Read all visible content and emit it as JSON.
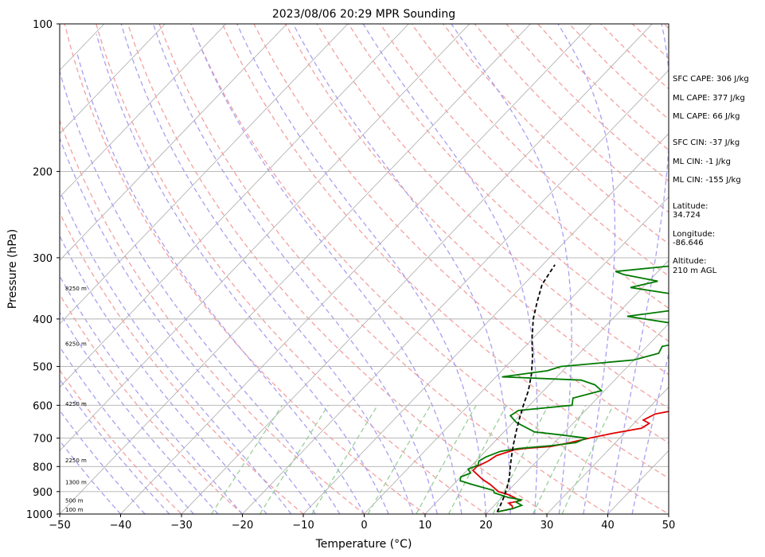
{
  "chart_data": {
    "type": "line",
    "title": "2023/08/06 20:29 MPR Sounding",
    "xlabel": "Temperature (°C)",
    "ylabel": "Pressure (hPa)",
    "xlim": [
      -50,
      50
    ],
    "ylim": [
      1000,
      100
    ],
    "y_scale": "log",
    "x_ticks": [
      "−50",
      "−40",
      "−30",
      "−20",
      "−10",
      "0",
      "10",
      "20",
      "30",
      "40",
      "50"
    ],
    "x_tick_values": [
      -50,
      -40,
      -30,
      -20,
      -10,
      0,
      10,
      20,
      30,
      40,
      50
    ],
    "y_ticks": [
      "100",
      "200",
      "300",
      "400",
      "500",
      "600",
      "700",
      "800",
      "900",
      "1000"
    ],
    "y_tick_values": [
      100,
      200,
      300,
      400,
      500,
      600,
      700,
      800,
      900,
      1000
    ],
    "grid": "horizontal at y ticks",
    "colors": {
      "temperature": "#e00000",
      "dewpoint": "#007a00",
      "parcel": "#000000",
      "isotherm": "#aaaaaa",
      "dry_adiabat": "#f4a0a0",
      "moist_adiabat": "#a9a0f0",
      "mixing_ratio": "#98d098"
    },
    "height_labels": [
      {
        "label": "100 m",
        "p": 982
      },
      {
        "label": "500 m",
        "p": 940
      },
      {
        "label": "1300 m",
        "p": 862
      },
      {
        "label": "2250 m",
        "p": 778
      },
      {
        "label": "4250 m",
        "p": 597
      },
      {
        "label": "6250 m",
        "p": 450
      },
      {
        "label": "8250 m",
        "p": 347
      }
    ],
    "series": [
      {
        "role": "temperature",
        "points": [
          [
            21.5,
            990
          ],
          [
            23.5,
            975
          ],
          [
            23.0,
            962
          ],
          [
            22.0,
            950
          ],
          [
            23.5,
            940
          ],
          [
            22.0,
            925
          ],
          [
            20.5,
            912
          ],
          [
            18.5,
            900
          ],
          [
            16.0,
            870
          ],
          [
            14.0,
            850
          ],
          [
            11.0,
            815
          ],
          [
            11.0,
            800
          ],
          [
            12.0,
            780
          ],
          [
            12.5,
            760
          ],
          [
            14.5,
            740
          ],
          [
            16.0,
            735
          ],
          [
            20.0,
            728
          ],
          [
            22.0,
            718
          ],
          [
            25.0,
            700
          ],
          [
            28.0,
            685
          ],
          [
            32.0,
            668
          ],
          [
            32.5,
            653
          ],
          [
            31.0,
            643
          ],
          [
            32.0,
            625
          ],
          [
            34.5,
            615
          ],
          [
            38.0,
            605
          ],
          [
            37.5,
            592
          ],
          [
            36.5,
            583
          ],
          [
            37.5,
            570
          ],
          [
            40.0,
            555
          ],
          [
            36.0,
            530
          ],
          [
            38.0,
            520
          ],
          [
            38.0,
            505
          ],
          [
            38.5,
            480
          ],
          [
            38.5,
            465
          ],
          [
            37.0,
            448
          ],
          [
            36.0,
            440
          ],
          [
            33.0,
            420
          ],
          [
            32.0,
            410
          ],
          [
            32.0,
            395
          ],
          [
            31.0,
            385
          ],
          [
            35.0,
            375
          ],
          [
            35.5,
            365
          ],
          [
            37.0,
            355
          ],
          [
            40.0,
            340
          ],
          [
            37.5,
            330
          ],
          [
            39.0,
            320
          ],
          [
            40.5,
            310
          ]
        ]
      },
      {
        "role": "dewpoint",
        "points": [
          [
            21.5,
            990
          ],
          [
            23.5,
            975
          ],
          [
            24.5,
            960
          ],
          [
            23.0,
            945
          ],
          [
            23.5,
            935
          ],
          [
            21.0,
            925
          ],
          [
            18.0,
            905
          ],
          [
            17.5,
            895
          ],
          [
            13.0,
            870
          ],
          [
            10.5,
            855
          ],
          [
            10.0,
            840
          ],
          [
            11.0,
            825
          ],
          [
            10.0,
            810
          ],
          [
            11.0,
            795
          ],
          [
            10.5,
            780
          ],
          [
            11.0,
            765
          ],
          [
            12.5,
            745
          ],
          [
            15.0,
            735
          ],
          [
            20.0,
            725
          ],
          [
            23.5,
            715
          ],
          [
            24.5,
            700
          ],
          [
            20.0,
            690
          ],
          [
            15.0,
            680
          ],
          [
            10.5,
            650
          ],
          [
            8.5,
            630
          ],
          [
            9.0,
            615
          ],
          [
            17.0,
            600
          ],
          [
            16.0,
            580
          ],
          [
            19.5,
            560
          ],
          [
            17.5,
            545
          ],
          [
            14.5,
            533
          ],
          [
            1.0,
            525
          ],
          [
            7.5,
            510
          ],
          [
            9.0,
            500
          ],
          [
            20.0,
            485
          ],
          [
            23.0,
            470
          ],
          [
            22.5,
            455
          ],
          [
            27.5,
            440
          ],
          [
            23.0,
            420
          ],
          [
            23.0,
            412
          ],
          [
            12.0,
            395
          ],
          [
            21.0,
            380
          ],
          [
            21.5,
            368
          ],
          [
            19.0,
            360
          ],
          [
            8.0,
            345
          ],
          [
            11.5,
            335
          ],
          [
            5.0,
            325
          ],
          [
            3.0,
            320
          ],
          [
            13.0,
            310
          ]
        ]
      },
      {
        "role": "parcel",
        "points": [
          [
            21.5,
            990
          ],
          [
            21.0,
            960
          ],
          [
            20.2,
            920
          ],
          [
            19.2,
            880
          ],
          [
            18.0,
            840
          ],
          [
            16.5,
            800
          ],
          [
            15.0,
            760
          ],
          [
            13.5,
            720
          ],
          [
            12.0,
            680
          ],
          [
            10.5,
            640
          ],
          [
            9.0,
            600
          ],
          [
            7.5,
            560
          ],
          [
            5.5,
            520
          ],
          [
            3.0,
            480
          ],
          [
            0.0,
            440
          ],
          [
            -3.0,
            400
          ],
          [
            -5.0,
            370
          ],
          [
            -7.0,
            340
          ],
          [
            -8.0,
            310
          ]
        ]
      }
    ]
  },
  "stats": {
    "sfc_cape": "SFC CAPE: 306 J/kg",
    "ml_cape_1": "ML CAPE: 377 J/kg",
    "ml_cape_2": "ML CAPE: 66 J/kg",
    "sfc_cin": "SFC CIN: -37 J/kg",
    "ml_cin_1": "ML CIN: -1 J/kg",
    "ml_cin_2": "ML CIN: -155 J/kg",
    "lat_label": "Latitude:",
    "lat_value": "34.724",
    "lon_label": "Longitude:",
    "lon_value": "-86.646",
    "alt_label": "Altitude:",
    "alt_value": "210 m AGL"
  }
}
